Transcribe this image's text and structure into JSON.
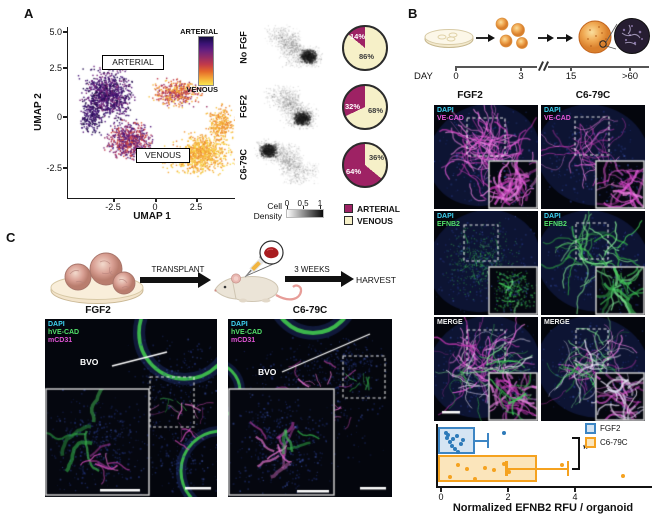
{
  "panels": {
    "a": "A",
    "b": "B",
    "c": "C"
  },
  "panelA": {
    "umap": {
      "xlabel": "UMAP 1",
      "ylabel": "UMAP 2",
      "x_ticks": [
        "-2.5",
        "0",
        "2.5"
      ],
      "y_ticks": [
        "5.0",
        "2.5",
        "0",
        "-2.5"
      ],
      "arterial_box": "ARTERIAL",
      "venous_box": "VENOUS",
      "colorbar_top": "ARTERIAL",
      "colorbar_bottom": "VENOUS"
    },
    "rows": [
      {
        "condition": "No FGF",
        "arterial_pct": "14%",
        "venous_pct": "86%"
      },
      {
        "condition": "FGF2",
        "arterial_pct": "32%",
        "venous_pct": "68%"
      },
      {
        "condition": "C6-79C",
        "arterial_pct": "64%",
        "venous_pct": "36%"
      }
    ],
    "density_legend": {
      "title_line1": "Cell",
      "title_line2": "Density",
      "ticks": [
        "0",
        "0.5",
        "1"
      ]
    },
    "pie_legend": [
      {
        "label": "ARTERIAL"
      },
      {
        "label": "VENOUS"
      }
    ]
  },
  "panelB": {
    "timeline": {
      "label": "DAY",
      "ticks": [
        "0",
        "3",
        "15",
        ">60"
      ]
    },
    "columns": [
      "FGF2",
      "C6-79C"
    ],
    "row_labels": [
      [
        "DAPI",
        "VE-CAD"
      ],
      [
        "DAPI",
        "EFNB2"
      ],
      [
        "MERGE"
      ]
    ],
    "chart": {
      "xlabel": "Normalized EFNB2 RFU / organoid",
      "x_ticks": [
        "0",
        "2",
        "4"
      ],
      "legend": [
        "FGF2",
        "C6-79C"
      ],
      "significance": "*"
    }
  },
  "panelC": {
    "transplant_label": "TRANSPLANT",
    "weeks_label": "3 WEEKS",
    "harvest_label": "HARVEST",
    "columns": [
      "FGF2",
      "C6-79C"
    ],
    "image_labels": [
      "DAPI",
      "hVE-CAD",
      "mCD31"
    ],
    "annotation": "BVO"
  },
  "colors": {
    "arterial": "#9e2264",
    "venous": "#f6f0c8",
    "fgf2_blue": "#3c85c4",
    "c679c_orange": "#f5a21f",
    "dapi_cyan": "#3fd2f2",
    "vecad_magenta": "#e155d5",
    "efnb2_green": "#52e06a",
    "merge_white": "#f2f2f2"
  },
  "chart_data": [
    {
      "type": "scatter",
      "name": "umap_arteriovenous_score",
      "xlabel": "UMAP 1",
      "ylabel": "UMAP 2",
      "x_ticks": [
        -2.5,
        0,
        2.5
      ],
      "y_ticks": [
        5.0,
        2.5,
        0,
        -2.5
      ],
      "xlim": [
        -4.4,
        3.6
      ],
      "ylim": [
        -4.0,
        5.8
      ],
      "regions": [
        "ARTERIAL",
        "VENOUS"
      ],
      "colorbar": {
        "top": "ARTERIAL",
        "bottom": "VENOUS"
      }
    },
    {
      "type": "pie",
      "condition": "No FGF",
      "slices": [
        {
          "label": "ARTERIAL",
          "value": 14
        },
        {
          "label": "VENOUS",
          "value": 86
        }
      ]
    },
    {
      "type": "pie",
      "condition": "FGF2",
      "slices": [
        {
          "label": "ARTERIAL",
          "value": 32
        },
        {
          "label": "VENOUS",
          "value": 68
        }
      ]
    },
    {
      "type": "pie",
      "condition": "C6-79C",
      "slices": [
        {
          "label": "ARTERIAL",
          "value": 64
        },
        {
          "label": "VENOUS",
          "value": 36
        }
      ]
    },
    {
      "type": "bar",
      "orientation": "horizontal",
      "xlabel": "Normalized EFNB2 RFU / organoid",
      "xlim": [
        0,
        5.8
      ],
      "x_ticks": [
        0,
        2,
        4
      ],
      "significance": "*",
      "series": [
        {
          "name": "FGF2",
          "bar": 1.05,
          "whisker_end": 1.4,
          "points": [
            0.18,
            0.22,
            0.25,
            0.3,
            0.35,
            0.4,
            0.45,
            0.5,
            0.55,
            0.62,
            0.7,
            1.9
          ]
        },
        {
          "name": "C6-79C",
          "bar": 2.9,
          "whisker_start": 1.95,
          "whisker_end": 3.8,
          "points": [
            0.3,
            0.55,
            0.8,
            1.05,
            1.35,
            1.6,
            1.9,
            2.05,
            3.65,
            5.45
          ]
        }
      ]
    }
  ],
  "density_maps": {
    "legend_ticks": [
      0,
      0.5,
      1
    ],
    "conditions": [
      "No FGF",
      "FGF2",
      "C6-79C"
    ]
  }
}
